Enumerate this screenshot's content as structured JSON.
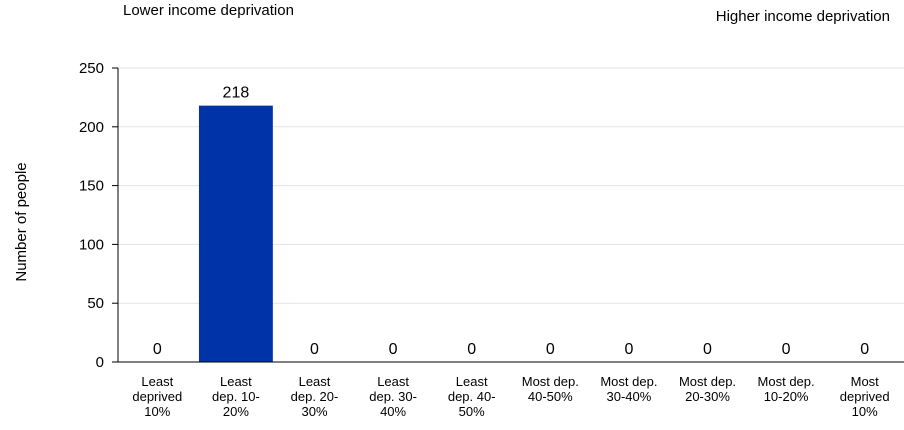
{
  "annotations": {
    "left": "Lower income deprivation",
    "right": "Higher income deprivation"
  },
  "chart_data": {
    "type": "bar",
    "title": "",
    "xlabel": "",
    "ylabel": "Number of people",
    "ylim": [
      0,
      250
    ],
    "yticks": [
      0,
      50,
      100,
      150,
      200,
      250
    ],
    "grid": true,
    "legend": "none",
    "bar_color": "#0033a8",
    "categories": [
      [
        "Least",
        "deprived",
        "10%"
      ],
      [
        "Least",
        "dep. 10-",
        "20%"
      ],
      [
        "Least",
        "dep. 20-",
        "30%"
      ],
      [
        "Least",
        "dep. 30-",
        "40%"
      ],
      [
        "Least",
        "dep. 40-",
        "50%"
      ],
      [
        "Most dep.",
        "40-50%"
      ],
      [
        "Most dep.",
        "30-40%"
      ],
      [
        "Most dep.",
        "20-30%"
      ],
      [
        "Most dep.",
        "10-20%"
      ],
      [
        "Most",
        "deprived",
        "10%"
      ]
    ],
    "values": [
      0,
      218,
      0,
      0,
      0,
      0,
      0,
      0,
      0,
      0
    ]
  }
}
